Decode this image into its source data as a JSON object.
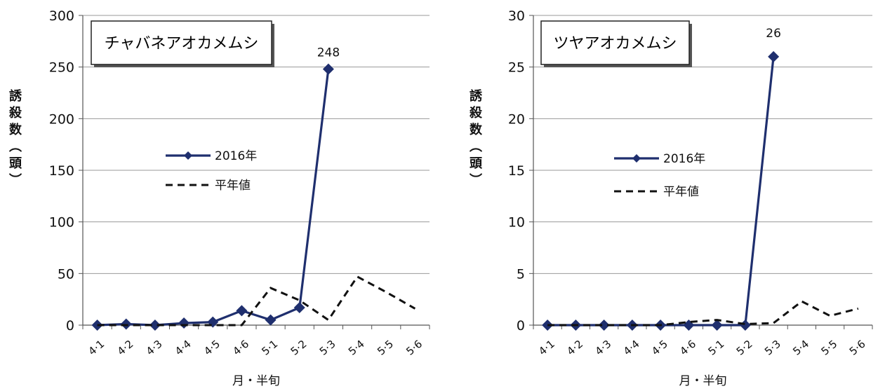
{
  "chart_data": [
    {
      "type": "line",
      "title": "チャバネアオカメムシ",
      "ylabel": "誘殺数（頭）",
      "xlabel": "月・半旬",
      "categories": [
        "4·1",
        "4·2",
        "4·3",
        "4·4",
        "4·5",
        "4·6",
        "5·1",
        "5·2",
        "5·3",
        "5·4",
        "5·5",
        "5·6"
      ],
      "yticks": [
        "0",
        "50",
        "100",
        "150",
        "200",
        "250",
        "300"
      ],
      "ylim": [
        0,
        300
      ],
      "grid": true,
      "legend_position": "center-left",
      "series": [
        {
          "name": "2016年",
          "style": "solid-diamond",
          "color": "#1f2f6e",
          "values": [
            0,
            1,
            0,
            2,
            3,
            14,
            5,
            17,
            248,
            null,
            null,
            null
          ]
        },
        {
          "name": "平年値",
          "style": "dashed",
          "color": "#111111",
          "values": [
            0,
            0,
            0,
            0,
            0,
            0,
            36,
            24,
            5,
            47,
            32,
            16
          ]
        }
      ],
      "annotations": [
        {
          "category_index": 8,
          "series_index": 0,
          "text": "248"
        }
      ]
    },
    {
      "type": "line",
      "title": "ツヤアオカメムシ",
      "ylabel": "誘殺数（頭）",
      "xlabel": "月・半旬",
      "categories": [
        "4·1",
        "4·2",
        "4·3",
        "4·4",
        "4·5",
        "4·6",
        "5·1",
        "5·2",
        "5·3",
        "5·4",
        "5·5",
        "5·6"
      ],
      "yticks": [
        "0",
        "5",
        "10",
        "15",
        "20",
        "25",
        "30"
      ],
      "ylim": [
        0,
        30
      ],
      "grid": true,
      "legend_position": "center-left",
      "series": [
        {
          "name": "2016年",
          "style": "solid-diamond",
          "color": "#1f2f6e",
          "values": [
            0,
            0,
            0,
            0,
            0,
            0,
            0,
            0,
            26,
            null,
            null,
            null
          ]
        },
        {
          "name": "平年値",
          "style": "dashed",
          "color": "#111111",
          "values": [
            0,
            0,
            0,
            0,
            0,
            0.3,
            0.5,
            0.1,
            0.2,
            2.3,
            0.9,
            1.6
          ]
        }
      ],
      "annotations": [
        {
          "category_index": 8,
          "series_index": 0,
          "text": "26"
        }
      ]
    }
  ]
}
